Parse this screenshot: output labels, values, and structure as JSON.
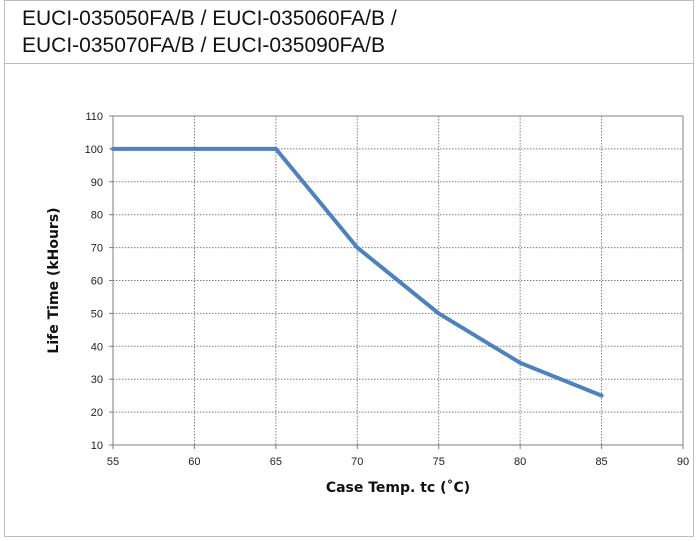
{
  "header": {
    "title_line1": "EUCI-035050FA/B / EUCI-035060FA/B /",
    "title_line2": "EUCI-035070FA/B / EUCI-035090FA/B"
  },
  "colors": {
    "line": "#4f81bd",
    "grid": "#7f7f7f",
    "border": "#bfbfbf"
  },
  "chart_data": {
    "type": "line",
    "title": "",
    "xlabel": "Case Temp. tc (˚C)",
    "ylabel": "Life Time (kHours)",
    "xlim": [
      55,
      90
    ],
    "ylim": [
      10,
      110
    ],
    "xticks": [
      55,
      60,
      65,
      70,
      75,
      80,
      85,
      90
    ],
    "yticks": [
      10,
      20,
      30,
      40,
      50,
      60,
      70,
      80,
      90,
      100,
      110
    ],
    "grid": true,
    "legend": "none",
    "series": [
      {
        "x": [
          55,
          65,
          70,
          75,
          80,
          85
        ],
        "y": [
          100,
          100,
          70,
          50,
          35,
          25
        ]
      }
    ]
  }
}
